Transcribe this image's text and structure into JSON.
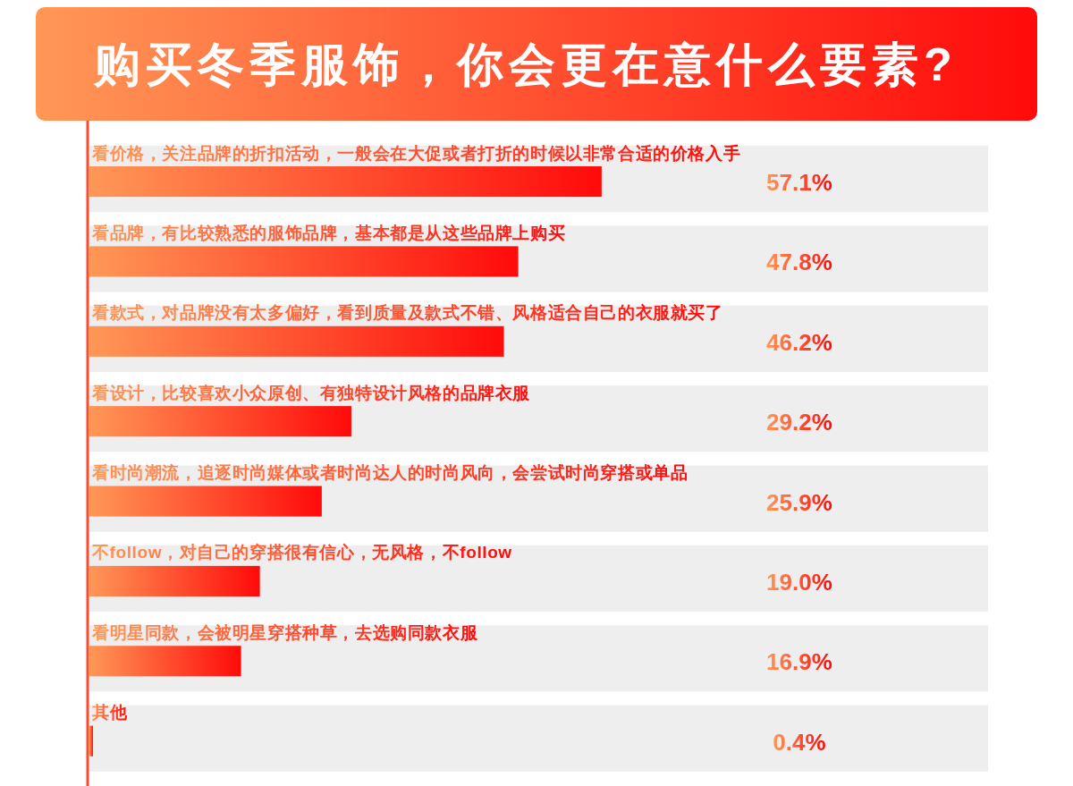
{
  "chart_data": {
    "type": "bar",
    "orientation": "horizontal",
    "title": "购买冬季服饰，你会更在意什么要素?",
    "categories": [
      "看价格，关注品牌的折扣活动，一般会在大促或者打折的时候以非常合适的价格入手",
      "看品牌，有比较熟悉的服饰品牌，基本都是从这些品牌上购买",
      "看款式，对品牌没有太多偏好，看到质量及款式不错、风格适合自己的衣服就买了",
      "看设计，比较喜欢小众原创、有独特设计风格的品牌衣服",
      "看时尚潮流，追逐时尚媒体或者时尚达人的时尚风向，会尝试时尚穿搭或单品",
      "不follow，对自己的穿搭很有信心，无风格，不follow",
      "看明星同款，会被明星穿搭种草，去选购同款衣服",
      "其他"
    ],
    "values": [
      57.1,
      47.8,
      46.2,
      29.2,
      25.9,
      19.0,
      16.9,
      0.4
    ],
    "value_labels": [
      "57.1%",
      "47.8%",
      "46.2%",
      "29.2%",
      "25.9%",
      "19.0%",
      "16.9%",
      "0.4%"
    ],
    "color": "#ff4a2e",
    "bands": [
      {
        "axis": "y",
        "from": "看价格，关注品牌的折扣活动，一般会在大促或者打折的时候以非常合适的价格入手",
        "to": "看价格，关注品牌的折扣活动，一般会在大促或者打折的时候以非常合适的价格入手",
        "color": "#eeeeee"
      },
      {
        "axis": "y",
        "from": "看品牌，有比较熟悉的服饰品牌，基本都是从这些品牌上购买",
        "to": "看品牌，有比较熟悉的服饰品牌，基本都是从这些品牌上购买",
        "color": "#eeeeee"
      },
      {
        "axis": "y",
        "from": "看款式，对品牌没有太多偏好，看到质量及款式不错、风格适合自己的衣服就买了",
        "to": "看款式，对品牌没有太多偏好，看到质量及款式不错、风格适合自己的衣服就买了",
        "color": "#eeeeee"
      },
      {
        "axis": "y",
        "from": "看设计，比较喜欢小众原创、有独特设计风格的品牌衣服",
        "to": "看设计，比较喜欢小众原创、有独特设计风格的品牌衣服",
        "color": "#eeeeee"
      },
      {
        "axis": "y",
        "from": "看时尚潮流，追逐时尚媒体或者时尚达人的时尚风向，会尝试时尚穿搭或单品",
        "to": "看时尚潮流，追逐时尚媒体或者时尚达人的时尚风向，会尝试时尚穿搭或单品",
        "color": "#eeeeee"
      },
      {
        "axis": "y",
        "from": "不follow，对自己的穿搭很有信心，无风格，不follow",
        "to": "不follow，对自己的穿搭很有信心，无风格，不follow",
        "color": "#eeeeee"
      },
      {
        "axis": "y",
        "from": "看明星同款，会被明星穿搭种草，去选购同款衣服",
        "to": "看明星同款，会被明星穿搭种草，去选购同款衣服",
        "color": "#eeeeee"
      },
      {
        "axis": "y",
        "from": "其他",
        "to": "其他",
        "color": "#eeeeee"
      }
    ]
  }
}
